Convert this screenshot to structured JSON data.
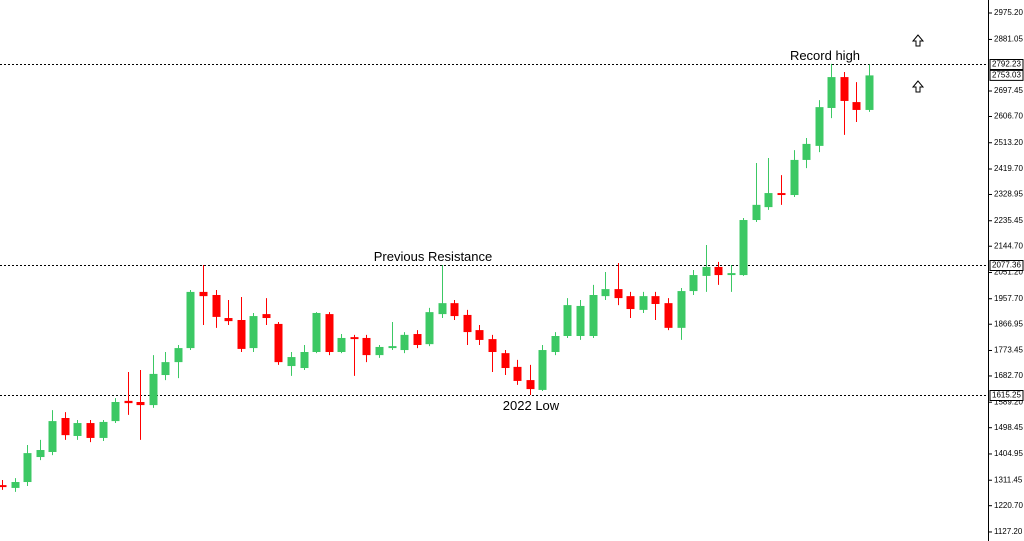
{
  "chart_data": {
    "type": "candlestick",
    "up_color": "#3cc864",
    "down_color": "#ff0000",
    "ylim": [
      1095,
      3021.5
    ],
    "yticks": [
      {
        "value": 2975.2,
        "label": "2975.20"
      },
      2881.05,
      2697.45,
      {
        "value": 2606.7,
        "label": "2606.70"
      },
      {
        "value": 2513.2,
        "label": "2513.20"
      },
      {
        "value": 2419.7,
        "label": "2419.70"
      },
      2328.95,
      2235.45,
      {
        "value": 2144.7,
        "label": "2144.70"
      },
      {
        "value": 2051.2,
        "label": "2051.20"
      },
      {
        "value": 1957.7,
        "label": "1957.70"
      },
      1866.95,
      1773.45,
      {
        "value": 1682.7,
        "label": "1682.70"
      },
      {
        "value": 1589.2,
        "label": "1589.20"
      },
      1498.45,
      1404.95,
      1311.45,
      {
        "value": 1220.7,
        "label": "1220.70"
      },
      {
        "value": 1127.2,
        "label": "1127.20"
      }
    ],
    "open": [
      1294,
      1284,
      1305,
      1394,
      1412,
      1533,
      1469,
      1515,
      1462,
      1522,
      1594,
      1590,
      1579,
      1686,
      1732,
      1782,
      1982,
      1971,
      1889,
      1882,
      1782,
      1903,
      1868,
      1718,
      1711,
      1768,
      1903,
      1768,
      1821,
      1818,
      1757,
      1782,
      1775,
      1832,
      1796,
      1903,
      1942,
      1900,
      1846,
      1814,
      1764,
      1715,
      1668,
      1633,
      1768,
      1825,
      1825,
      1825,
      1967,
      1992,
      1967,
      1918,
      1967,
      1942,
      1854,
      1985,
      2039,
      2071,
      2042,
      2042,
      2238,
      2284,
      2334,
      2327,
      2452,
      2502,
      2637,
      2747,
      2658,
      2630
    ],
    "high": [
      1312,
      1319,
      1437,
      1455,
      1561,
      1554,
      1526,
      1526,
      1526,
      1604,
      1697,
      1704,
      1757,
      1768,
      1793,
      1989,
      2078,
      1989,
      1953,
      1964,
      1907,
      1960,
      1875,
      1768,
      1793,
      1910,
      1910,
      1832,
      1829,
      1829,
      1793,
      1875,
      1839,
      1846,
      1925,
      2078,
      1953,
      1918,
      1864,
      1829,
      1775,
      1740,
      1722,
      1793,
      1839,
      1960,
      1953,
      2007,
      2053,
      2085,
      1982,
      1982,
      1982,
      1960,
      1996,
      2060,
      2149,
      2089,
      2078,
      2245,
      2441,
      2459,
      2398,
      2487,
      2530,
      2665,
      2794,
      2765,
      2729,
      2792
    ],
    "low": [
      1277,
      1270,
      1291,
      1383,
      1401,
      1455,
      1455,
      1447,
      1451,
      1515,
      1544,
      1455,
      1569,
      1668,
      1675,
      1775,
      1864,
      1854,
      1864,
      1768,
      1768,
      1864,
      1722,
      1683,
      1704,
      1764,
      1757,
      1764,
      1683,
      1732,
      1747,
      1775,
      1764,
      1782,
      1789,
      1889,
      1882,
      1793,
      1793,
      1697,
      1686,
      1651,
      1615,
      1629,
      1757,
      1818,
      1811,
      1818,
      1953,
      1935,
      1889,
      1907,
      1882,
      1846,
      1811,
      1971,
      1982,
      2007,
      1982,
      2039,
      2231,
      2274,
      2292,
      2320,
      2423,
      2480,
      2601,
      2541,
      2587,
      2623
    ],
    "close": [
      1287,
      1305,
      1408,
      1419,
      1522,
      1472,
      1515,
      1462,
      1519,
      1590,
      1586,
      1579,
      1690,
      1732,
      1782,
      1982,
      1967,
      1893,
      1878,
      1779,
      1896,
      1889,
      1732,
      1750,
      1768,
      1907,
      1768,
      1818,
      1814,
      1757,
      1786,
      1789,
      1829,
      1793,
      1910,
      1942,
      1896,
      1839,
      1811,
      1768,
      1711,
      1665,
      1636,
      1775,
      1825,
      1935,
      1932,
      1971,
      1992,
      1960,
      1921,
      1967,
      1939,
      1854,
      1985,
      2042,
      2071,
      2042,
      2049,
      2238,
      2292,
      2334,
      2327,
      2452,
      2509,
      2640,
      2747,
      2662,
      2630,
      2753
    ],
    "levels": [
      {
        "value": 2792.23,
        "annotation": "Record high"
      },
      {
        "value": 2077.36,
        "annotation": "Previous Resistance"
      },
      {
        "value": 1615.25,
        "annotation": "2022 Low"
      }
    ],
    "price_label": 2753.03
  }
}
